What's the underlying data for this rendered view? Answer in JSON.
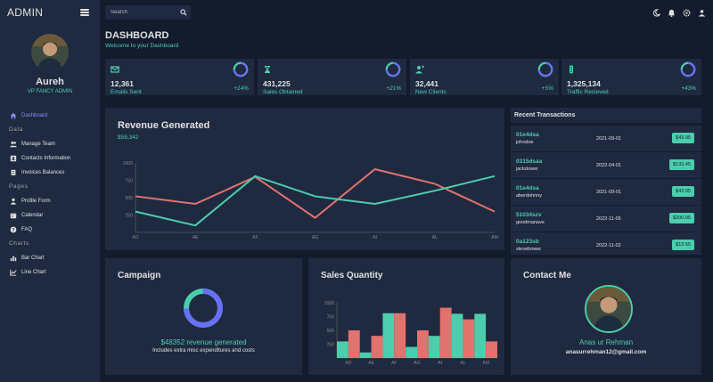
{
  "brand": "ADMIN",
  "search": {
    "placeholder": "Search"
  },
  "profile": {
    "name": "Aureh",
    "role": "VP FANCY ADMIN"
  },
  "nav": {
    "dashboard": "Dashboard",
    "section_data": "Data",
    "team": "Manage Team",
    "contacts": "Contacts Information",
    "invoices": "Invoices Balances",
    "section_pages": "Pages",
    "profile_form": "Profile Form",
    "calendar": "Calendar",
    "faq": "FAQ",
    "section_charts": "Charts",
    "bar": "Bar Chart",
    "line": "Line Chart"
  },
  "header": {
    "title": "DASHBOARD",
    "subtitle": "Welcome to your Dashboard"
  },
  "stats": [
    {
      "value": "12,361",
      "label": "Emails Sent",
      "pct": "+14%",
      "icon": "email-icon",
      "progress": 0.75
    },
    {
      "value": "431,225",
      "label": "Sales Obtained",
      "pct": "+21%",
      "icon": "hourglass-icon",
      "progress": 0.75
    },
    {
      "value": "32,441",
      "label": "New Clients",
      "pct": "+5%",
      "icon": "person-add-icon",
      "progress": 0.75
    },
    {
      "value": "1,325,134",
      "label": "Traffic Recieved",
      "pct": "+43%",
      "icon": "traffic-icon",
      "progress": 0.75
    }
  ],
  "revenue": {
    "title": "Revenue Generated",
    "value": "$59,342"
  },
  "transactions": {
    "title": "Recent Transactions",
    "rows": [
      {
        "id": "01e4dsa",
        "user": "johndoe",
        "date": "2021-09-01",
        "cost": "$43.95"
      },
      {
        "id": "0315dsaa",
        "user": "jackdower",
        "date": "2022-04-01",
        "cost": "$133.45"
      },
      {
        "id": "01e4dsa",
        "user": "aberdohnny",
        "date": "2021-09-01",
        "cost": "$43.95"
      },
      {
        "id": "51034szv",
        "user": "goodmanave",
        "date": "2022-11-05",
        "cost": "$200.95"
      },
      {
        "id": "0a123sb",
        "user": "stevebower",
        "date": "2022-11-02",
        "cost": "$13.55"
      }
    ]
  },
  "campaign": {
    "title": "Campaign",
    "revenue": "$48352 revenue generated",
    "note": "Includes extra misc expenditures and costs",
    "progress": 0.75
  },
  "sales": {
    "title": "Sales Quantity"
  },
  "contact": {
    "title": "Contact Me",
    "name": "Anas ur Rehman",
    "email": "anasurrehman12@gmail.com"
  },
  "colors": {
    "accent": "#4cceac",
    "red": "#e2726e",
    "blue": "#6870fa",
    "card": "#1f2a40",
    "bg": "#141b2d"
  },
  "chart_data": [
    {
      "type": "line",
      "categories": [
        "AO",
        "AE",
        "AF",
        "AG",
        "AI",
        "AL",
        "AM"
      ],
      "ylim": [
        0,
        1000
      ],
      "yticks": [
        250,
        500,
        750,
        1000
      ],
      "series": [
        {
          "color": "#e2726e",
          "values": [
            520,
            410,
            800,
            210,
            910,
            700,
            300
          ]
        },
        {
          "color": "#4cceac",
          "values": [
            300,
            100,
            810,
            520,
            410,
            600,
            810
          ]
        }
      ]
    },
    {
      "type": "bar",
      "categories": [
        "AD",
        "AE",
        "AF",
        "AG",
        "AI",
        "AL",
        "AM"
      ],
      "ylim": [
        0,
        1000
      ],
      "yticks": [
        250,
        500,
        750,
        1000
      ],
      "series": [
        {
          "color": "#4cceac",
          "values": [
            300,
            100,
            810,
            200,
            400,
            800,
            800
          ]
        },
        {
          "color": "#e2726e",
          "values": [
            500,
            400,
            810,
            500,
            910,
            700,
            300
          ]
        }
      ]
    }
  ]
}
